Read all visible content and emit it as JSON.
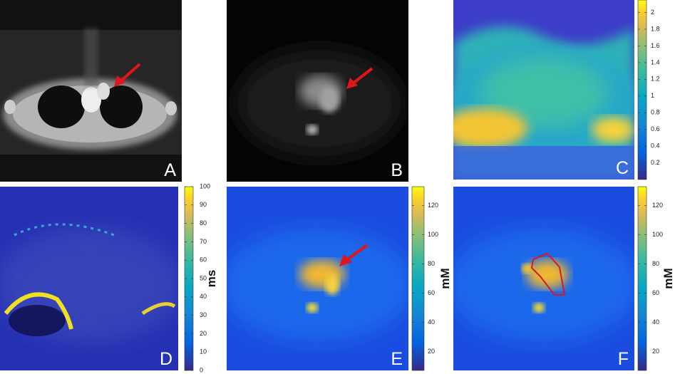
{
  "panels": [
    {
      "label": "A"
    },
    {
      "label": "B"
    },
    {
      "label": "C",
      "colorbar": {
        "lim": [
          0,
          2.15
        ],
        "ticks": [
          0.2,
          0.4,
          0.6,
          0.8,
          1,
          1.2,
          1.4,
          1.6,
          1.8,
          2
        ]
      }
    },
    {
      "label": "D",
      "colorbar": {
        "lim": [
          0,
          100
        ],
        "ticks": [
          0,
          10,
          20,
          30,
          40,
          50,
          60,
          70,
          80,
          90,
          100
        ],
        "unit": "ms"
      }
    },
    {
      "label": "E",
      "colorbar": {
        "lim": [
          7,
          133
        ],
        "ticks": [
          20,
          40,
          60,
          80,
          100,
          120
        ],
        "unit": "mM"
      }
    },
    {
      "label": "F",
      "colorbar": {
        "lim": [
          7,
          133
        ],
        "ticks": [
          20,
          40,
          60,
          80,
          100,
          120
        ],
        "unit": "mM"
      }
    }
  ]
}
